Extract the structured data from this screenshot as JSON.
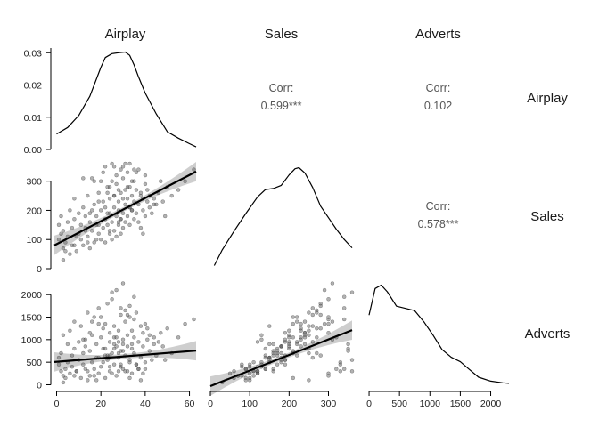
{
  "chart_data": {
    "type": "scatter",
    "variables": [
      "Airplay",
      "Sales",
      "Adverts"
    ],
    "ranges": {
      "Airplay": [
        -1,
        63
      ],
      "Sales": [
        0,
        360
      ],
      "Adverts": [
        -30,
        2300
      ]
    },
    "ticks": {
      "Airplay": [
        0,
        20,
        40,
        60
      ],
      "Sales": [
        0,
        100,
        200,
        300
      ],
      "Adverts": [
        0,
        500,
        1000,
        1500,
        2000
      ]
    },
    "density_ticks": {
      "values": [
        0,
        0.01,
        0.02,
        0.03
      ],
      "labels": [
        "0.00",
        "0.01",
        "0.02",
        "0.03"
      ],
      "range": [
        0,
        0.032
      ]
    },
    "densities": {
      "Airplay": {
        "x": [
          0,
          5,
          10,
          15,
          20,
          22,
          25,
          28,
          31,
          33,
          35,
          37,
          40,
          45,
          50,
          55,
          60,
          63
        ],
        "y": [
          0.0048,
          0.0068,
          0.0105,
          0.0165,
          0.0255,
          0.0285,
          0.0297,
          0.03,
          0.0302,
          0.0292,
          0.0262,
          0.0225,
          0.0175,
          0.011,
          0.0055,
          0.0035,
          0.0018,
          0.0008
        ]
      },
      "Sales": {
        "x": [
          10,
          30,
          60,
          90,
          120,
          140,
          160,
          180,
          200,
          215,
          225,
          240,
          260,
          280,
          300,
          320,
          340,
          360
        ],
        "y": [
          0.3,
          1.8,
          3.6,
          5.3,
          6.9,
          7.6,
          7.7,
          8.0,
          9.0,
          9.6,
          9.7,
          9.2,
          7.8,
          6.0,
          4.9,
          3.8,
          2.8,
          2.0
        ]
      },
      "Adverts": {
        "x": [
          0,
          100,
          200,
          300,
          450,
          600,
          750,
          900,
          1050,
          1200,
          1350,
          1500,
          1650,
          1800,
          2000,
          2200,
          2300
        ],
        "y": [
          6.4,
          8.8,
          9.1,
          8.5,
          7.2,
          7.0,
          6.8,
          5.8,
          4.6,
          3.3,
          2.6,
          2.2,
          1.5,
          0.8,
          0.45,
          0.3,
          0.25
        ]
      }
    },
    "correlations": [
      {
        "row": "Airplay",
        "col": "Sales",
        "label": "Corr:",
        "value": "0.599***"
      },
      {
        "row": "Airplay",
        "col": "Adverts",
        "label": "Corr:",
        "value": "0.102"
      },
      {
        "row": "Sales",
        "col": "Adverts",
        "label": "Corr:",
        "value": "0.578***"
      }
    ],
    "fits": {
      "Sales~Airplay": {
        "intercept": 84,
        "slope": 3.95
      },
      "Adverts~Airplay": {
        "intercept": 510,
        "slope": 3.9
      },
      "Adverts~Sales": {
        "intercept": -30,
        "slope": 3.45
      }
    },
    "points": {
      "airplay": [
        1,
        1,
        2,
        2,
        3,
        3,
        4,
        5,
        5,
        6,
        6,
        7,
        7,
        8,
        8,
        9,
        10,
        10,
        11,
        11,
        12,
        12,
        13,
        13,
        14,
        14,
        15,
        15,
        16,
        16,
        17,
        17,
        18,
        18,
        19,
        19,
        20,
        20,
        21,
        21,
        22,
        22,
        22,
        23,
        23,
        24,
        24,
        24,
        25,
        25,
        25,
        26,
        26,
        26,
        27,
        27,
        27,
        28,
        28,
        28,
        29,
        29,
        29,
        30,
        30,
        30,
        31,
        31,
        31,
        32,
        32,
        32,
        33,
        33,
        33,
        34,
        34,
        35,
        35,
        35,
        36,
        36,
        37,
        37,
        38,
        38,
        39,
        39,
        40,
        40,
        41,
        41,
        42,
        42,
        43,
        44,
        45,
        46,
        47,
        48,
        50,
        52,
        55,
        58,
        62,
        4,
        9,
        14,
        19,
        24,
        29,
        34,
        39,
        44,
        49,
        3,
        8,
        13,
        18,
        23,
        28,
        33,
        38,
        26,
        30,
        21,
        35,
        17,
        25,
        31,
        12,
        27,
        22,
        36,
        16,
        29,
        24,
        33,
        20,
        40,
        28,
        34,
        23,
        37,
        19,
        26,
        32,
        15,
        30
      ],
      "sales": [
        100,
        150,
        120,
        180,
        70,
        130,
        90,
        160,
        110,
        50,
        200,
        140,
        80,
        170,
        240,
        60,
        120,
        190,
        100,
        150,
        210,
        80,
        130,
        180,
        110,
        250,
        70,
        160,
        200,
        130,
        90,
        220,
        150,
        180,
        120,
        260,
        100,
        200,
        140,
        230,
        170,
        90,
        210,
        150,
        280,
        120,
        190,
        240,
        160,
        100,
        300,
        130,
        210,
        250,
        180,
        110,
        290,
        150,
        230,
        200,
        120,
        260,
        170,
        310,
        190,
        140,
        220,
        270,
        160,
        240,
        180,
        330,
        210,
        150,
        280,
        200,
        250,
        170,
        300,
        230,
        190,
        270,
        220,
        160,
        260,
        140,
        240,
        200,
        290,
        180,
        230,
        270,
        210,
        250,
        190,
        240,
        220,
        260,
        300,
        230,
        280,
        250,
        270,
        300,
        340,
        60,
        110,
        90,
        150,
        130,
        170,
        200,
        120,
        220,
        180,
        30,
        80,
        140,
        100,
        190,
        160,
        210,
        250,
        350,
        350,
        330,
        340,
        300,
        360,
        360,
        310,
        320,
        350,
        330,
        310,
        340,
        280,
        360,
        300,
        320,
        270,
        300,
        260,
        340,
        230,
        250,
        280,
        190,
        240
      ],
      "adverts": [
        450,
        600,
        300,
        700,
        200,
        1100,
        350,
        900,
        500,
        250,
        1200,
        650,
        400,
        800,
        1400,
        300,
        950,
        550,
        150,
        1300,
        700,
        450,
        1000,
        850,
        300,
        1600,
        200,
        750,
        1100,
        500,
        350,
        1500,
        900,
        600,
        250,
        1700,
        400,
        1050,
        800,
        1250,
        650,
        150,
        1350,
        550,
        1800,
        300,
        950,
        1150,
        700,
        250,
        1900,
        450,
        1050,
        1300,
        850,
        200,
        2100,
        600,
        1200,
        950,
        400,
        1550,
        750,
        2250,
        1000,
        350,
        1400,
        1650,
        650,
        1100,
        850,
        300,
        1500,
        500,
        1750,
        900,
        1200,
        700,
        1450,
        1050,
        450,
        1600,
        950,
        350,
        1300,
        600,
        1150,
        850,
        1350,
        500,
        1000,
        1250,
        750,
        1100,
        550,
        1050,
        650,
        950,
        1150,
        850,
        1250,
        700,
        1050,
        1350,
        1450,
        150,
        300,
        100,
        600,
        400,
        450,
        800,
        250,
        900,
        550,
        50,
        200,
        350,
        100,
        650,
        300,
        150,
        100,
        900,
        750,
        500,
        1950,
        200,
        2050,
        300,
        1000,
        1050,
        800,
        450,
        1400,
        1700,
        650,
        550,
        1500,
        350,
        700,
        250,
        600,
        350,
        1350,
        800,
        1550,
        1150,
        900
      ]
    }
  }
}
